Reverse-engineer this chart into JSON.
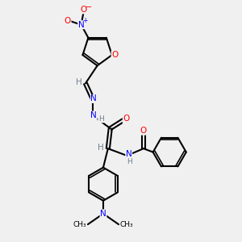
{
  "background_color": "#f0f0f0",
  "bond_color": "#000000",
  "N_color": "#0000ff",
  "O_color": "#ff0000",
  "H_color": "#708090",
  "figsize": [
    3.0,
    3.0
  ],
  "dpi": 100,
  "xlim": [
    0,
    10
  ],
  "ylim": [
    0,
    10
  ]
}
